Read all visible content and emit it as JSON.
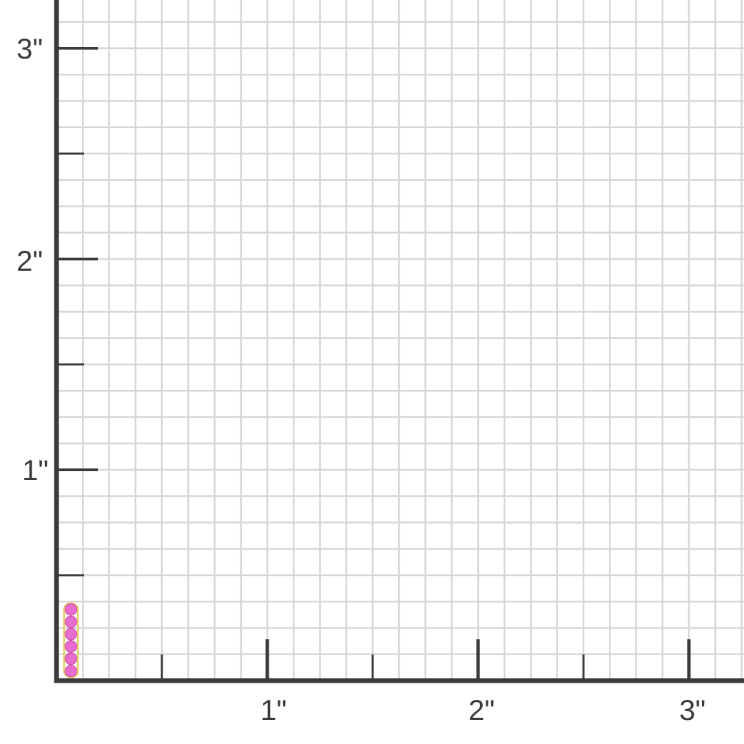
{
  "units": "inch",
  "grid_subdivisions_per_inch": 8,
  "x_axis": {
    "ticks": [
      {
        "value": 1,
        "label": "1\""
      },
      {
        "value": 2,
        "label": "2\""
      },
      {
        "value": 3,
        "label": "3\""
      }
    ]
  },
  "y_axis": {
    "ticks": [
      {
        "value": 1,
        "label": "1\""
      },
      {
        "value": 2,
        "label": "2\""
      },
      {
        "value": 3,
        "label": "3\""
      }
    ]
  },
  "colors": {
    "axis": "#3a3a3a",
    "grid": "#d6d6d6",
    "gem": "#e86ccf",
    "metal": "#e7c86a"
  },
  "product": {
    "type": "huggie earring with pink stones",
    "height_in": 0.35,
    "stone_count": 6
  }
}
